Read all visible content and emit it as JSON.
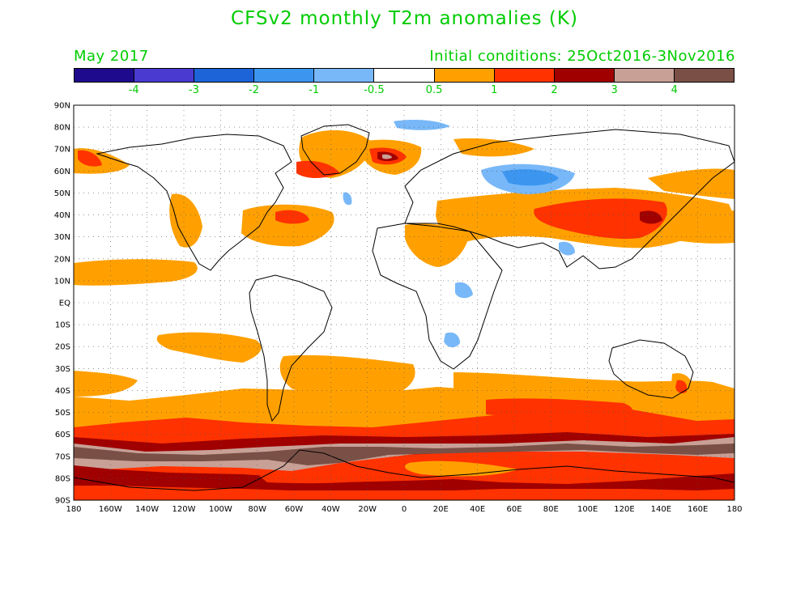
{
  "title": "CFSv2 monthly T2m anomalies (K)",
  "valid_month": "May 2017",
  "initial_conditions": "Initial conditions: 25Oct2016-3Nov2016",
  "colorbar": {
    "colors": [
      "#1e0a8c",
      "#4a3ad0",
      "#1c64d8",
      "#3c96f0",
      "#78b8f8",
      "#ffffff",
      "#ffa000",
      "#ff3200",
      "#a00000",
      "#c8a096",
      "#7a5046"
    ],
    "labels": [
      {
        "text": "-4",
        "at": 1
      },
      {
        "text": "-3",
        "at": 2
      },
      {
        "text": "-2",
        "at": 3
      },
      {
        "text": "-1",
        "at": 4
      },
      {
        "text": "-0.5",
        "at": 5
      },
      {
        "text": "0.5",
        "at": 6
      },
      {
        "text": "1",
        "at": 7
      },
      {
        "text": "2",
        "at": 8
      },
      {
        "text": "3",
        "at": 9
      },
      {
        "text": "4",
        "at": 10
      }
    ]
  },
  "axes": {
    "lat_labels": [
      "90N",
      "80N",
      "70N",
      "60N",
      "50N",
      "40N",
      "30N",
      "20N",
      "10N",
      "EQ",
      "10S",
      "20S",
      "30S",
      "40S",
      "50S",
      "60S",
      "70S",
      "80S",
      "90S"
    ],
    "lon_labels": [
      "180",
      "160W",
      "140W",
      "120W",
      "100W",
      "80W",
      "60W",
      "40W",
      "20W",
      "0",
      "20E",
      "40E",
      "60E",
      "80E",
      "100E",
      "120E",
      "140E",
      "160E",
      "180"
    ]
  }
}
